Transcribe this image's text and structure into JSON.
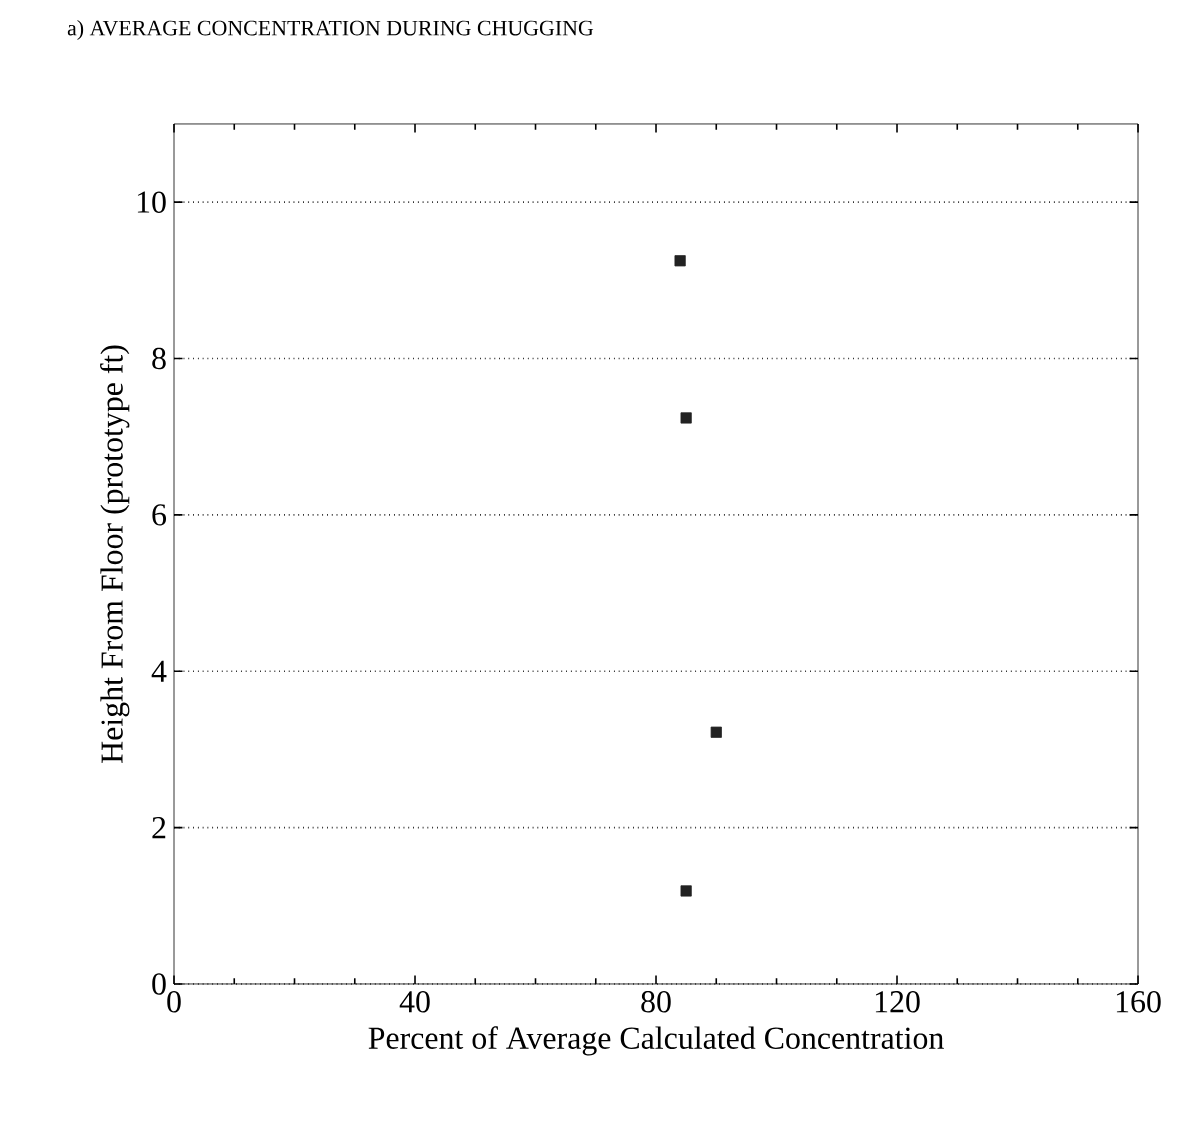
{
  "chart_data": {
    "type": "scatter",
    "title": "a) AVERAGE CONCENTRATION DURING CHUGGING",
    "xlabel": "Percent of Average Calculated Concentration",
    "ylabel": "Height From Floor (prototype ft)",
    "x": [
      84,
      85,
      90,
      85
    ],
    "series": [
      {
        "color": "#222222",
        "values": [
          9.25,
          7.24,
          3.22,
          1.19
        ]
      }
    ],
    "xlim": [
      0,
      160
    ],
    "xticks": [
      0,
      40,
      80,
      120,
      160
    ],
    "ylim": [
      0,
      11
    ],
    "yticks": [
      0,
      2,
      4,
      6,
      8,
      10
    ],
    "grid": "y",
    "marker": "square",
    "line_style": "dotted"
  }
}
